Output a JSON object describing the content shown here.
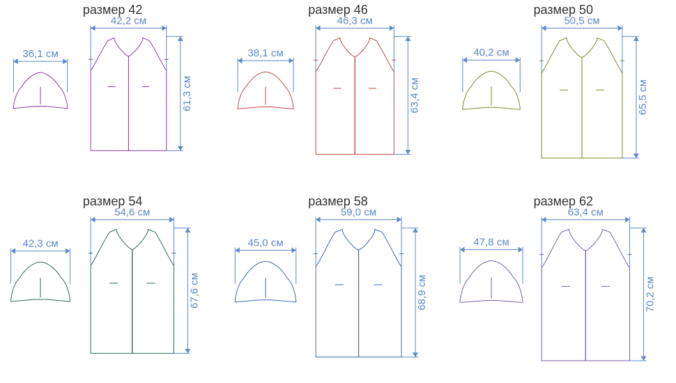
{
  "title_prefix": "размер",
  "unit": "см",
  "dimension_color": "#5a88c9",
  "label_fontsize": 15,
  "title_fontsize": 18,
  "patterns": [
    {
      "size": "42",
      "sleeve_width": "36,1",
      "body_width": "42,2",
      "body_height": "61,3",
      "stroke": "#8a3fa8",
      "scale": 0.92
    },
    {
      "size": "46",
      "sleeve_width": "38,1",
      "body_width": "46,3",
      "body_height": "63,4",
      "stroke": "#b84a4a",
      "scale": 0.95
    },
    {
      "size": "50",
      "sleeve_width": "40,2",
      "body_width": "50,5",
      "body_height": "65,5",
      "stroke": "#7a8a2e",
      "scale": 0.98
    },
    {
      "size": "54",
      "sleeve_width": "42,3",
      "body_width": "54,6",
      "body_height": "67,6",
      "stroke": "#2e6a5a",
      "scale": 1.01
    },
    {
      "size": "58",
      "sleeve_width": "45,0",
      "body_width": "59,0",
      "body_height": "68,9",
      "stroke": "#3a6ab0",
      "scale": 1.04
    },
    {
      "size": "62",
      "sleeve_width": "47,8",
      "body_width": "63,4",
      "body_height": "70,2",
      "stroke": "#7a5fa8",
      "scale": 1.07
    }
  ]
}
